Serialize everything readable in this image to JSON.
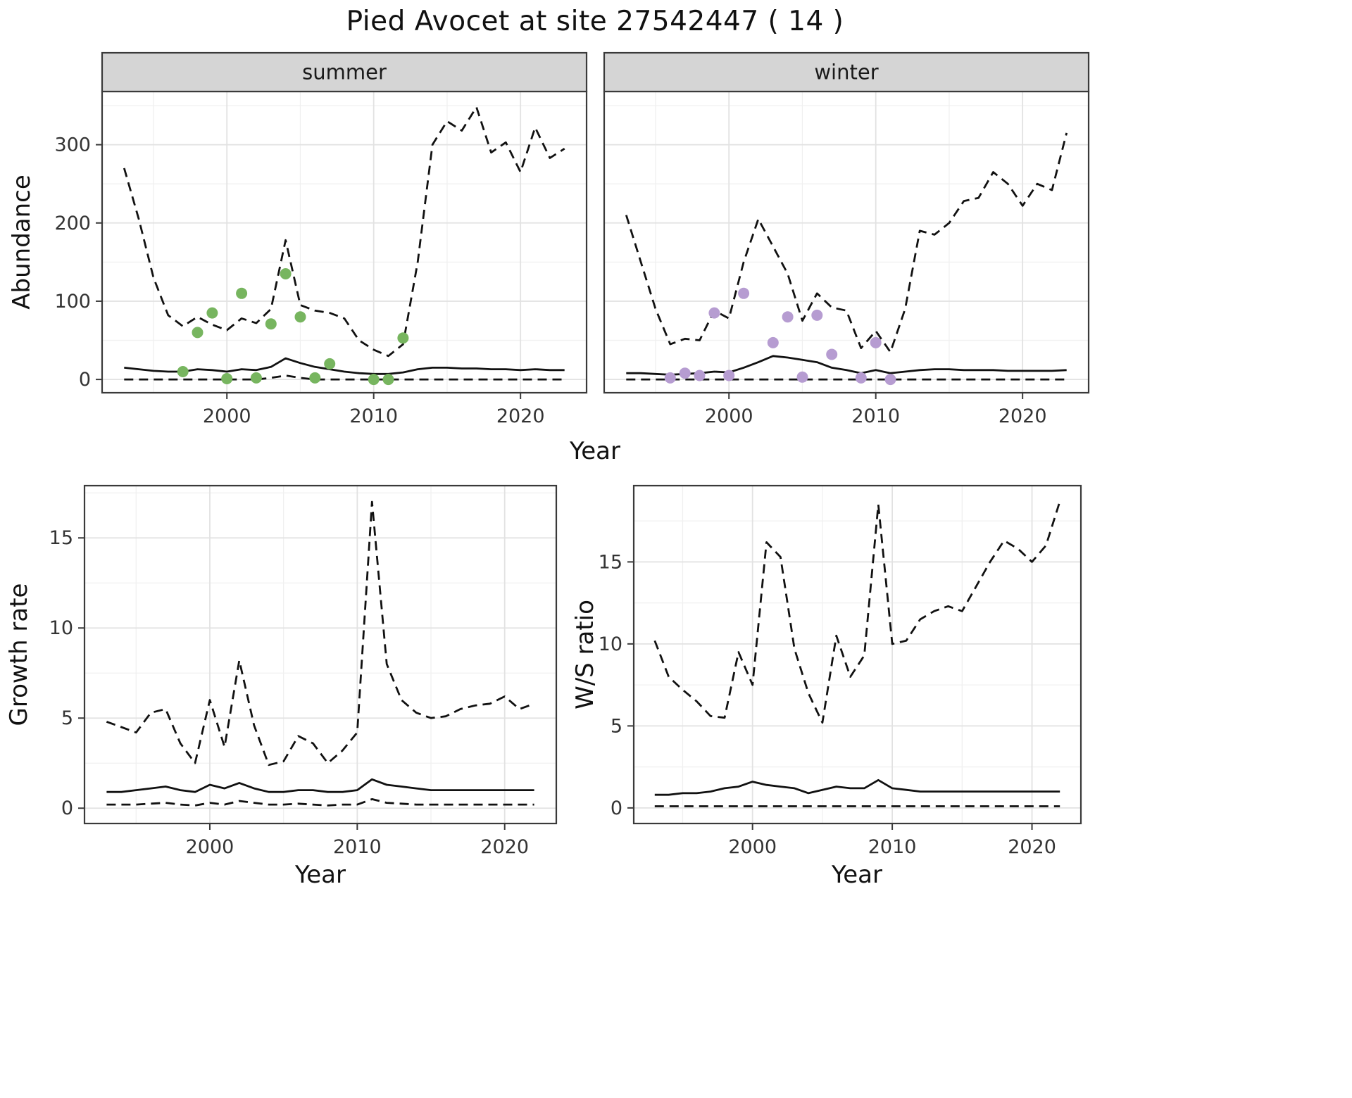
{
  "title": "Pied Avocet at site 27542447 ( 14 )",
  "axis_labels": {
    "year": "Year",
    "abundance": "Abundance",
    "growth_rate": "Growth rate",
    "ws_ratio": "W/S ratio"
  },
  "colors": {
    "summer_point": "#77b55f",
    "winter_point": "#b69cd1",
    "line": "#111111",
    "strip_fill": "#d5d5d5",
    "panel_border": "#3a3a3a",
    "grid_major": "#e2e2e2",
    "grid_minor": "#f0f0f0"
  },
  "chart_data": [
    {
      "type": "line",
      "facet": "summer",
      "xlabel": "Year",
      "ylabel": "Abundance",
      "xlim": [
        1991.5,
        2024.5
      ],
      "ylim": [
        -17,
        368
      ],
      "xticks": [
        2000,
        2010,
        2020
      ],
      "xminor": [
        1995,
        2005,
        2015
      ],
      "yticks": [
        0,
        100,
        200,
        300
      ],
      "yminor": [
        50,
        150,
        250,
        350
      ],
      "x": [
        1993,
        1994,
        1995,
        1996,
        1997,
        1998,
        1999,
        2000,
        2001,
        2002,
        2003,
        2004,
        2005,
        2006,
        2007,
        2008,
        2009,
        2010,
        2011,
        2012,
        2013,
        2014,
        2015,
        2016,
        2017,
        2018,
        2019,
        2020,
        2021,
        2022,
        2023
      ],
      "series": [
        {
          "name": "upper_interval",
          "style": "dashed",
          "values": [
            270,
            205,
            130,
            82,
            68,
            80,
            70,
            63,
            78,
            72,
            90,
            178,
            95,
            88,
            85,
            78,
            50,
            38,
            30,
            45,
            150,
            300,
            330,
            318,
            348,
            290,
            303,
            265,
            322,
            283,
            295
          ]
        },
        {
          "name": "median",
          "style": "solid",
          "values": [
            15,
            13,
            11,
            10,
            10,
            13,
            12,
            10,
            13,
            12,
            16,
            27,
            21,
            16,
            13,
            10,
            8,
            7,
            7,
            9,
            13,
            15,
            15,
            14,
            14,
            13,
            13,
            12,
            13,
            12,
            12
          ]
        },
        {
          "name": "lower_interval",
          "style": "dashed",
          "values": [
            0,
            0,
            0,
            0,
            0,
            0,
            0,
            0,
            0,
            0,
            2,
            5,
            2,
            0,
            0,
            0,
            0,
            0,
            0,
            0,
            0,
            0,
            0,
            0,
            0,
            0,
            0,
            0,
            0,
            0,
            0
          ]
        }
      ],
      "points": {
        "name": "summer-observations",
        "color": "#77b55f",
        "x": [
          1997,
          1998,
          1999,
          2000,
          2001,
          2002,
          2003,
          2004,
          2005,
          2006,
          2007,
          2010,
          2011,
          2012
        ],
        "y": [
          10,
          60,
          85,
          1,
          110,
          2,
          71,
          135,
          80,
          2,
          20,
          0,
          0,
          53
        ]
      }
    },
    {
      "type": "line",
      "facet": "winter",
      "xlabel": "Year",
      "ylabel": "",
      "xlim": [
        1991.5,
        2024.5
      ],
      "ylim": [
        -17,
        368
      ],
      "xticks": [
        2000,
        2010,
        2020
      ],
      "xminor": [
        1995,
        2005,
        2015
      ],
      "yticks": [
        0,
        100,
        200,
        300
      ],
      "yminor": [
        50,
        150,
        250,
        350
      ],
      "x": [
        1993,
        1994,
        1995,
        1996,
        1997,
        1998,
        1999,
        2000,
        2001,
        2002,
        2003,
        2004,
        2005,
        2006,
        2007,
        2008,
        2009,
        2010,
        2011,
        2012,
        2013,
        2014,
        2015,
        2016,
        2017,
        2018,
        2019,
        2020,
        2021,
        2022,
        2023
      ],
      "series": [
        {
          "name": "upper_interval",
          "style": "dashed",
          "values": [
            210,
            150,
            90,
            45,
            52,
            50,
            88,
            78,
            150,
            205,
            170,
            135,
            75,
            110,
            92,
            88,
            40,
            62,
            35,
            90,
            190,
            185,
            200,
            228,
            232,
            265,
            250,
            222,
            250,
            242,
            315
          ]
        },
        {
          "name": "median",
          "style": "solid",
          "values": [
            8,
            8,
            7,
            6,
            7,
            8,
            10,
            9,
            15,
            22,
            30,
            28,
            25,
            22,
            15,
            12,
            8,
            12,
            8,
            10,
            12,
            13,
            13,
            12,
            12,
            12,
            11,
            11,
            11,
            11,
            12
          ]
        },
        {
          "name": "lower_interval",
          "style": "dashed",
          "values": [
            0,
            0,
            0,
            0,
            0,
            0,
            0,
            0,
            0,
            0,
            0,
            0,
            0,
            0,
            0,
            0,
            0,
            0,
            0,
            0,
            0,
            0,
            0,
            0,
            0,
            0,
            0,
            0,
            0,
            0,
            0
          ]
        }
      ],
      "points": {
        "name": "winter-observations",
        "color": "#b69cd1",
        "x": [
          1996,
          1997,
          1998,
          1999,
          2000,
          2001,
          2003,
          2004,
          2005,
          2006,
          2007,
          2009,
          2010,
          2011
        ],
        "y": [
          2,
          8,
          5,
          85,
          5,
          110,
          47,
          80,
          3,
          82,
          32,
          2,
          47,
          0
        ]
      }
    },
    {
      "type": "line",
      "facet": null,
      "xlabel": "Year",
      "ylabel": "Growth rate",
      "xlim": [
        1991.5,
        2023.5
      ],
      "ylim": [
        -0.85,
        17.9
      ],
      "xticks": [
        2000,
        2010,
        2020
      ],
      "xminor": [
        1995,
        2005,
        2015
      ],
      "yticks": [
        0,
        5,
        10,
        15
      ],
      "yminor": [
        2.5,
        7.5,
        12.5,
        17.5
      ],
      "x": [
        1993,
        1994,
        1995,
        1996,
        1997,
        1998,
        1999,
        2000,
        2001,
        2002,
        2003,
        2004,
        2005,
        2006,
        2007,
        2008,
        2009,
        2010,
        2011,
        2012,
        2013,
        2014,
        2015,
        2016,
        2017,
        2018,
        2019,
        2020,
        2021,
        2022
      ],
      "series": [
        {
          "name": "upper_interval",
          "style": "dashed",
          "values": [
            4.8,
            4.5,
            4.2,
            5.3,
            5.5,
            3.6,
            2.5,
            6.0,
            3.4,
            8.2,
            4.6,
            2.4,
            2.6,
            4.0,
            3.6,
            2.5,
            3.2,
            4.2,
            17.0,
            8.0,
            6.0,
            5.3,
            5.0,
            5.1,
            5.5,
            5.7,
            5.8,
            6.2,
            5.5,
            5.8
          ]
        },
        {
          "name": "median",
          "style": "solid",
          "values": [
            0.9,
            0.9,
            1.0,
            1.1,
            1.2,
            1.0,
            0.9,
            1.3,
            1.1,
            1.4,
            1.1,
            0.9,
            0.9,
            1.0,
            1.0,
            0.9,
            0.9,
            1.0,
            1.6,
            1.3,
            1.2,
            1.1,
            1.0,
            1.0,
            1.0,
            1.0,
            1.0,
            1.0,
            1.0,
            1.0
          ]
        },
        {
          "name": "lower_interval",
          "style": "dashed",
          "values": [
            0.2,
            0.2,
            0.2,
            0.25,
            0.3,
            0.2,
            0.15,
            0.3,
            0.2,
            0.4,
            0.3,
            0.2,
            0.2,
            0.25,
            0.2,
            0.15,
            0.2,
            0.2,
            0.5,
            0.3,
            0.25,
            0.2,
            0.2,
            0.2,
            0.2,
            0.2,
            0.2,
            0.2,
            0.2,
            0.2
          ]
        }
      ],
      "points": null
    },
    {
      "type": "line",
      "facet": null,
      "xlabel": "Year",
      "ylabel": "W/S ratio",
      "xlim": [
        1991.5,
        2023.5
      ],
      "ylim": [
        -0.95,
        19.65
      ],
      "xticks": [
        2000,
        2010,
        2020
      ],
      "xminor": [
        1995,
        2005,
        2015
      ],
      "yticks": [
        0,
        5,
        10,
        15
      ],
      "yminor": [
        2.5,
        7.5,
        12.5,
        17.5
      ],
      "x": [
        1993,
        1994,
        1995,
        1996,
        1997,
        1998,
        1999,
        2000,
        2001,
        2002,
        2003,
        2004,
        2005,
        2006,
        2007,
        2008,
        2009,
        2010,
        2011,
        2012,
        2013,
        2014,
        2015,
        2016,
        2017,
        2018,
        2019,
        2020,
        2021,
        2022
      ],
      "series": [
        {
          "name": "upper_interval",
          "style": "dashed",
          "values": [
            10.2,
            8.0,
            7.2,
            6.5,
            5.6,
            5.5,
            9.5,
            7.5,
            16.2,
            15.3,
            9.7,
            7.0,
            5.2,
            10.5,
            8.0,
            9.3,
            18.5,
            10.0,
            10.2,
            11.5,
            12.0,
            12.3,
            12.0,
            13.5,
            15.0,
            16.3,
            15.8,
            15.0,
            16.0,
            18.7
          ]
        },
        {
          "name": "median",
          "style": "solid",
          "values": [
            0.8,
            0.8,
            0.9,
            0.9,
            1.0,
            1.2,
            1.3,
            1.6,
            1.4,
            1.3,
            1.2,
            0.9,
            1.1,
            1.3,
            1.2,
            1.2,
            1.7,
            1.2,
            1.1,
            1.0,
            1.0,
            1.0,
            1.0,
            1.0,
            1.0,
            1.0,
            1.0,
            1.0,
            1.0,
            1.0
          ]
        },
        {
          "name": "lower_interval",
          "style": "dashed",
          "values": [
            0.1,
            0.1,
            0.1,
            0.1,
            0.1,
            0.1,
            0.1,
            0.1,
            0.1,
            0.1,
            0.1,
            0.1,
            0.1,
            0.1,
            0.1,
            0.1,
            0.1,
            0.1,
            0.1,
            0.1,
            0.1,
            0.1,
            0.1,
            0.1,
            0.1,
            0.1,
            0.1,
            0.1,
            0.1,
            0.1
          ]
        }
      ],
      "points": null
    }
  ]
}
